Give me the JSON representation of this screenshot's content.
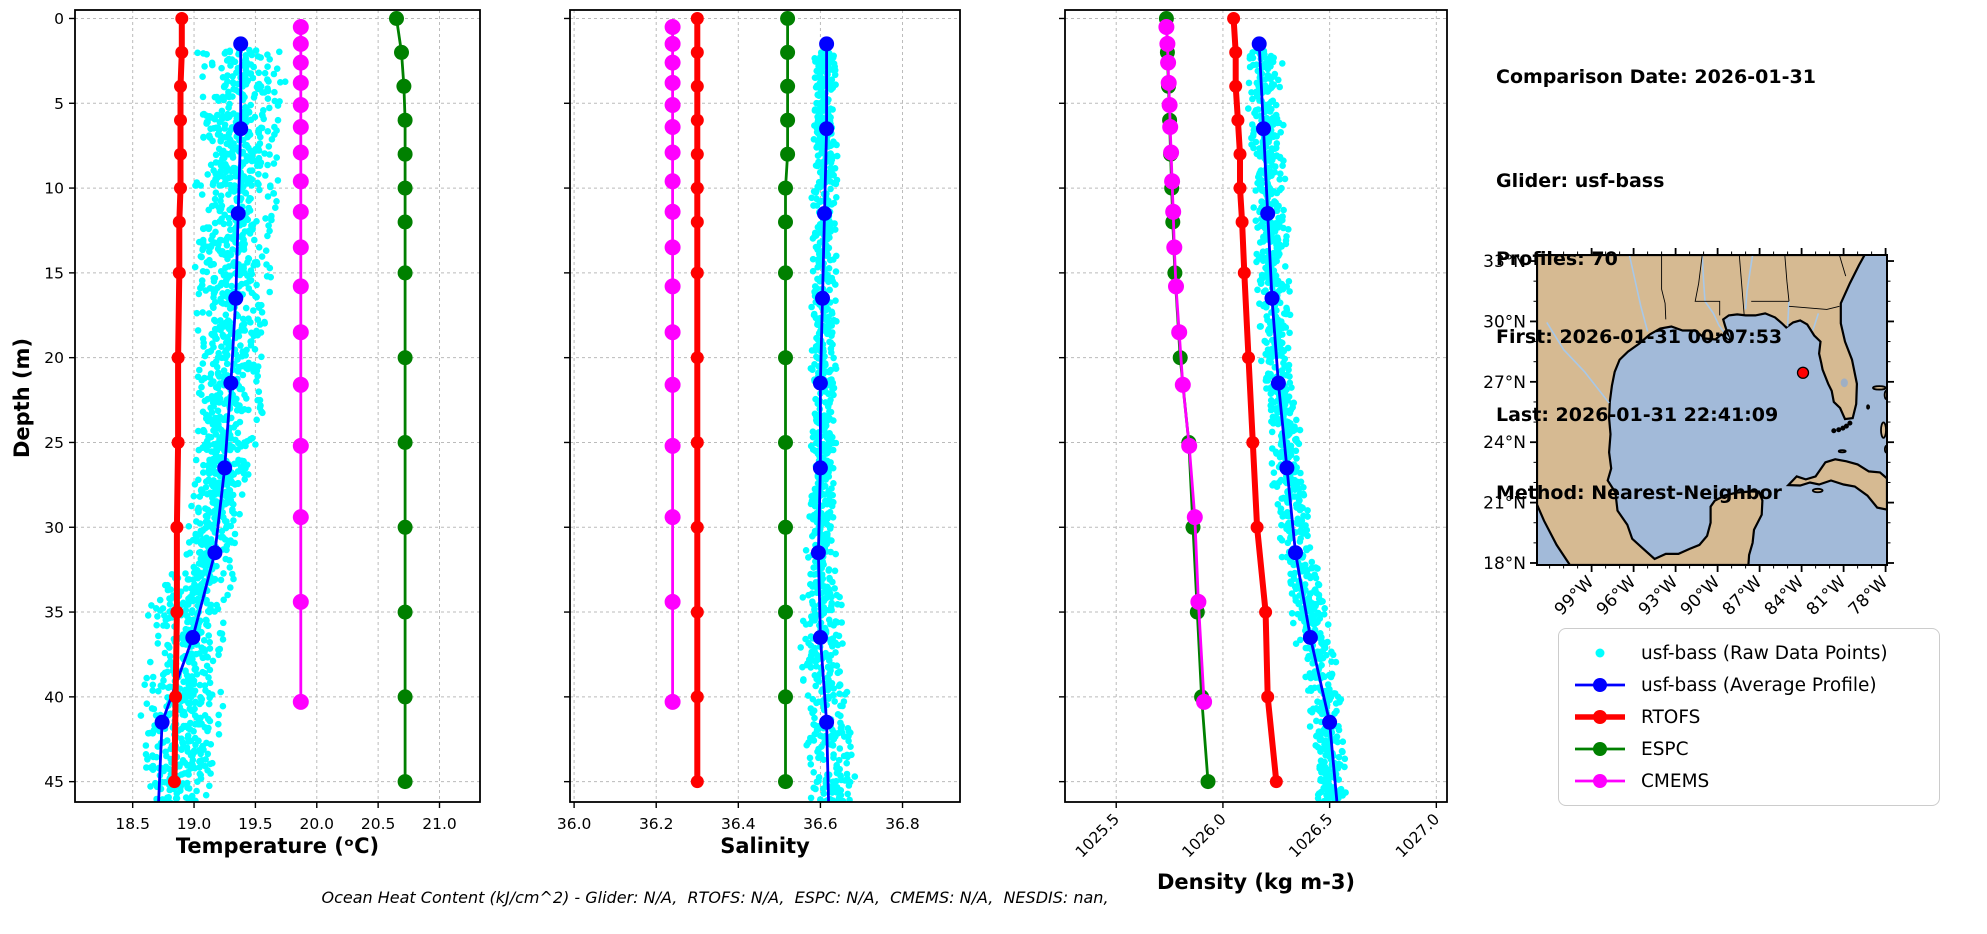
{
  "info_panel": {
    "comparison_date": "Comparison Date: 2026-01-31",
    "glider": "Glider: usf-bass",
    "profiles": "Profiles: 70",
    "first": "First: 2026-01-31 00:07:53",
    "last": "Last: 2026-01-31 22:41:09",
    "method": "Method: Nearest-Neighbor"
  },
  "footer": {
    "ohc_text": "Ocean Heat Content (kJ/cm^2) - Glider: N/A,  RTOFS: N/A,  ESPC: N/A,  CMEMS: N/A,  NESDIS: nan,"
  },
  "legend": {
    "position": "lower-right",
    "items": [
      {
        "label": "usf-bass (Raw Data Points)",
        "color": "#00ffff",
        "style": "dot"
      },
      {
        "label": "usf-bass (Average Profile)",
        "color": "#0000ff",
        "style": "line-dot",
        "lw": 2.8
      },
      {
        "label": "RTOFS",
        "color": "#ff0000",
        "style": "line-dot",
        "lw": 5.5
      },
      {
        "label": "ESPC",
        "color": "#008000",
        "style": "line-dot",
        "lw": 2.8
      },
      {
        "label": "CMEMS",
        "color": "#ff00ff",
        "style": "line-dot",
        "lw": 2.8
      }
    ]
  },
  "colors": {
    "raw_points": "#00ffff",
    "average_profile": "#0000ff",
    "rtofs": "#ff0000",
    "espc": "#008000",
    "cmems": "#ff00ff",
    "grid": "#bbbbbb"
  },
  "chart_data": [
    {
      "id": "temperature",
      "type": "scatter",
      "xlabel": "Temperature (ᵒC)",
      "ylabel": "Depth (m)",
      "xlim": [
        18.03,
        21.33
      ],
      "depth_lim": [
        -0.5,
        46.2
      ],
      "xticks": [
        18.5,
        19.0,
        19.5,
        20.0,
        20.5,
        21.0
      ],
      "xtick_labels": [
        "18.5",
        "19.0",
        "19.5",
        "20.0",
        "20.5",
        "21.0"
      ],
      "yticks": [
        0,
        5,
        10,
        15,
        20,
        25,
        30,
        35,
        40,
        45
      ],
      "rotate_xticks": false,
      "show_ytick_labels": true,
      "grid": true,
      "raw_scatter": {
        "name": "usf-bass (Raw Data Points)",
        "color": "#00ffff",
        "count": 1600,
        "seed": 11,
        "envelope": {
          "depths": [
            1.8,
            15,
            25,
            30,
            33,
            35,
            40,
            46.3
          ],
          "min": [
            19.0,
            18.99,
            18.96,
            18.93,
            18.72,
            18.6,
            18.56,
            18.55
          ],
          "max": [
            19.79,
            19.66,
            19.54,
            19.4,
            19.36,
            19.33,
            19.26,
            19.21
          ]
        }
      },
      "series": [
        {
          "name": "usf-bass (Average Profile)",
          "color": "#0000ff",
          "lw": 2.8,
          "marker_r": 7.5,
          "skip_last_marker": true,
          "depths": [
            1.5,
            6.5,
            11.5,
            16.5,
            21.5,
            26.5,
            31.5,
            36.5,
            41.5,
            46.3
          ],
          "values": [
            19.38,
            19.38,
            19.36,
            19.34,
            19.3,
            19.25,
            19.17,
            18.99,
            18.74,
            18.71
          ]
        },
        {
          "name": "RTOFS",
          "color": "#ff0000",
          "lw": 6,
          "marker_r": 6.5,
          "depths": [
            0,
            2,
            4,
            6,
            8,
            10,
            12,
            15,
            20,
            25,
            30,
            35,
            40,
            45
          ],
          "values": [
            18.9,
            18.9,
            18.89,
            18.89,
            18.89,
            18.89,
            18.88,
            18.88,
            18.87,
            18.87,
            18.86,
            18.86,
            18.85,
            18.84
          ]
        },
        {
          "name": "ESPC",
          "color": "#008000",
          "lw": 2.8,
          "marker_r": 7.5,
          "depths": [
            0,
            2,
            4,
            6,
            8,
            10,
            12,
            15,
            20,
            25,
            30,
            35,
            40,
            45
          ],
          "values": [
            20.65,
            20.69,
            20.71,
            20.72,
            20.72,
            20.72,
            20.72,
            20.72,
            20.72,
            20.72,
            20.72,
            20.72,
            20.72,
            20.72
          ]
        },
        {
          "name": "CMEMS",
          "color": "#ff00ff",
          "lw": 2.8,
          "marker_r": 8,
          "depths": [
            0.5,
            1.5,
            2.6,
            3.8,
            5.1,
            6.4,
            7.9,
            9.6,
            11.4,
            13.5,
            15.8,
            18.5,
            21.6,
            25.2,
            29.4,
            34.4,
            40.3
          ],
          "values": [
            19.87,
            19.87,
            19.87,
            19.87,
            19.87,
            19.87,
            19.87,
            19.87,
            19.87,
            19.87,
            19.87,
            19.87,
            19.87,
            19.87,
            19.87,
            19.87,
            19.87
          ]
        }
      ]
    },
    {
      "id": "salinity",
      "type": "scatter",
      "xlabel": "Salinity",
      "ylabel": "Depth (m)",
      "xlim": [
        35.99,
        36.94
      ],
      "depth_lim": [
        -0.5,
        46.2
      ],
      "xticks": [
        36.0,
        36.2,
        36.4,
        36.6,
        36.8
      ],
      "xtick_labels": [
        "36.0",
        "36.2",
        "36.4",
        "36.6",
        "36.8"
      ],
      "yticks": [
        0,
        5,
        10,
        15,
        20,
        25,
        30,
        35,
        40,
        45
      ],
      "rotate_xticks": false,
      "show_ytick_labels": false,
      "grid": true,
      "raw_scatter": {
        "name": "usf-bass (Raw Data Points)",
        "color": "#00ffff",
        "count": 1000,
        "seed": 22,
        "envelope": {
          "depths": [
            1.8,
            10,
            20,
            30,
            34,
            38,
            42,
            46.3
          ],
          "min": [
            36.58,
            36.578,
            36.575,
            36.57,
            36.555,
            36.54,
            36.55,
            36.575
          ],
          "max": [
            36.645,
            36.645,
            36.64,
            36.64,
            36.65,
            36.67,
            36.7,
            36.685
          ]
        }
      },
      "series": [
        {
          "name": "usf-bass (Average Profile)",
          "color": "#0000ff",
          "lw": 2.8,
          "marker_r": 7.5,
          "skip_last_marker": true,
          "depths": [
            1.5,
            6.5,
            11.5,
            16.5,
            21.5,
            26.5,
            31.5,
            36.5,
            41.5,
            46.3
          ],
          "values": [
            36.615,
            36.615,
            36.61,
            36.605,
            36.6,
            36.6,
            36.595,
            36.6,
            36.615,
            36.62
          ]
        },
        {
          "name": "RTOFS",
          "color": "#ff0000",
          "lw": 6,
          "marker_r": 6.5,
          "depths": [
            0,
            2,
            4,
            6,
            8,
            10,
            12,
            15,
            20,
            25,
            30,
            35,
            40,
            45
          ],
          "values": [
            36.3,
            36.3,
            36.3,
            36.3,
            36.3,
            36.3,
            36.3,
            36.3,
            36.3,
            36.3,
            36.3,
            36.3,
            36.3,
            36.3
          ]
        },
        {
          "name": "ESPC",
          "color": "#008000",
          "lw": 2.8,
          "marker_r": 7.5,
          "depths": [
            0,
            2,
            4,
            6,
            8,
            10,
            12,
            15,
            20,
            25,
            30,
            35,
            40,
            45
          ],
          "values": [
            36.52,
            36.52,
            36.52,
            36.52,
            36.52,
            36.515,
            36.515,
            36.515,
            36.515,
            36.515,
            36.515,
            36.515,
            36.515,
            36.515
          ]
        },
        {
          "name": "CMEMS",
          "color": "#ff00ff",
          "lw": 2.8,
          "marker_r": 8,
          "depths": [
            0.5,
            1.5,
            2.6,
            3.8,
            5.1,
            6.4,
            7.9,
            9.6,
            11.4,
            13.5,
            15.8,
            18.5,
            21.6,
            25.2,
            29.4,
            34.4,
            40.3
          ],
          "values": [
            36.24,
            36.24,
            36.24,
            36.24,
            36.24,
            36.24,
            36.24,
            36.24,
            36.24,
            36.24,
            36.24,
            36.24,
            36.24,
            36.24,
            36.24,
            36.24,
            36.24
          ]
        }
      ]
    },
    {
      "id": "density",
      "type": "scatter",
      "xlabel": "Density (kg m-3)",
      "ylabel": "Depth (m)",
      "xlim": [
        1025.26,
        1027.05
      ],
      "depth_lim": [
        -0.5,
        46.2
      ],
      "xticks": [
        1025.5,
        1026.0,
        1026.5,
        1027.0
      ],
      "xtick_labels": [
        "1025.5",
        "1026.0",
        "1026.5",
        "1027.0"
      ],
      "yticks": [
        0,
        5,
        10,
        15,
        20,
        25,
        30,
        35,
        40,
        45
      ],
      "rotate_xticks": true,
      "show_ytick_labels": false,
      "grid": true,
      "raw_scatter": {
        "name": "usf-bass (Raw Data Points)",
        "color": "#00ffff",
        "count": 1100,
        "seed": 33,
        "envelope": {
          "depths": [
            1.8,
            10,
            20,
            30,
            36,
            40,
            46.3
          ],
          "min": [
            1026.1,
            1026.13,
            1026.17,
            1026.25,
            1026.33,
            1026.38,
            1026.42
          ],
          "max": [
            1026.28,
            1026.3,
            1026.33,
            1026.42,
            1026.5,
            1026.57,
            1026.6
          ]
        }
      },
      "series": [
        {
          "name": "usf-bass (Average Profile)",
          "color": "#0000ff",
          "lw": 2.8,
          "marker_r": 7.5,
          "skip_last_marker": true,
          "depths": [
            1.5,
            6.5,
            11.5,
            16.5,
            21.5,
            26.5,
            31.5,
            36.5,
            41.5,
            46.3
          ],
          "values": [
            1026.17,
            1026.19,
            1026.21,
            1026.23,
            1026.26,
            1026.3,
            1026.34,
            1026.41,
            1026.5,
            1026.535
          ]
        },
        {
          "name": "RTOFS",
          "color": "#ff0000",
          "lw": 6,
          "marker_r": 6.5,
          "depths": [
            0,
            2,
            4,
            6,
            8,
            10,
            12,
            15,
            20,
            25,
            30,
            35,
            40,
            45
          ],
          "values": [
            1026.05,
            1026.06,
            1026.06,
            1026.07,
            1026.08,
            1026.08,
            1026.09,
            1026.1,
            1026.12,
            1026.14,
            1026.16,
            1026.2,
            1026.21,
            1026.25
          ]
        },
        {
          "name": "ESPC",
          "color": "#008000",
          "lw": 2.8,
          "marker_r": 7.5,
          "depths": [
            0,
            2,
            4,
            6,
            8,
            10,
            12,
            15,
            20,
            25,
            30,
            35,
            40,
            45
          ],
          "values": [
            1025.735,
            1025.74,
            1025.745,
            1025.75,
            1025.755,
            1025.76,
            1025.765,
            1025.775,
            1025.8,
            1025.84,
            1025.86,
            1025.88,
            1025.9,
            1025.93
          ]
        },
        {
          "name": "CMEMS",
          "color": "#ff00ff",
          "lw": 2.8,
          "marker_r": 8,
          "depths": [
            0.5,
            1.5,
            2.6,
            3.8,
            5.1,
            6.4,
            7.9,
            9.6,
            11.4,
            13.5,
            15.8,
            18.5,
            21.6,
            25.2,
            29.4,
            34.4,
            40.3
          ],
          "values": [
            1025.735,
            1025.74,
            1025.743,
            1025.746,
            1025.75,
            1025.753,
            1025.757,
            1025.762,
            1025.767,
            1025.772,
            1025.78,
            1025.795,
            1025.812,
            1025.842,
            1025.868,
            1025.885,
            1025.912
          ]
        }
      ]
    },
    {
      "id": "map",
      "type": "map",
      "lon_ticks": [
        99,
        96,
        93,
        90,
        87,
        84,
        81,
        78
      ],
      "lon_tick_labels": [
        "99°W",
        "96°W",
        "93°W",
        "90°W",
        "87°W",
        "84°W",
        "81°W",
        "78°W"
      ],
      "lat_ticks": [
        33,
        30,
        27,
        24,
        21,
        18
      ],
      "lat_tick_labels": [
        "33°N",
        "30°N",
        "27°N",
        "24°N",
        "21°N",
        "18°N"
      ],
      "extent": {
        "lon_w_left": 102.9,
        "lon_w_right": 77.9,
        "lat_top": 33.3,
        "lat_bottom": 17.9
      },
      "glider_marker": {
        "lon_w": 83.9,
        "lat": 27.45,
        "color": "#ff0000"
      },
      "colors": {
        "water": "#a2bad9",
        "land": "#d6ba92",
        "lake": "#9fafc4",
        "river": "#a8c8e8",
        "boundary": "#000000"
      }
    }
  ]
}
